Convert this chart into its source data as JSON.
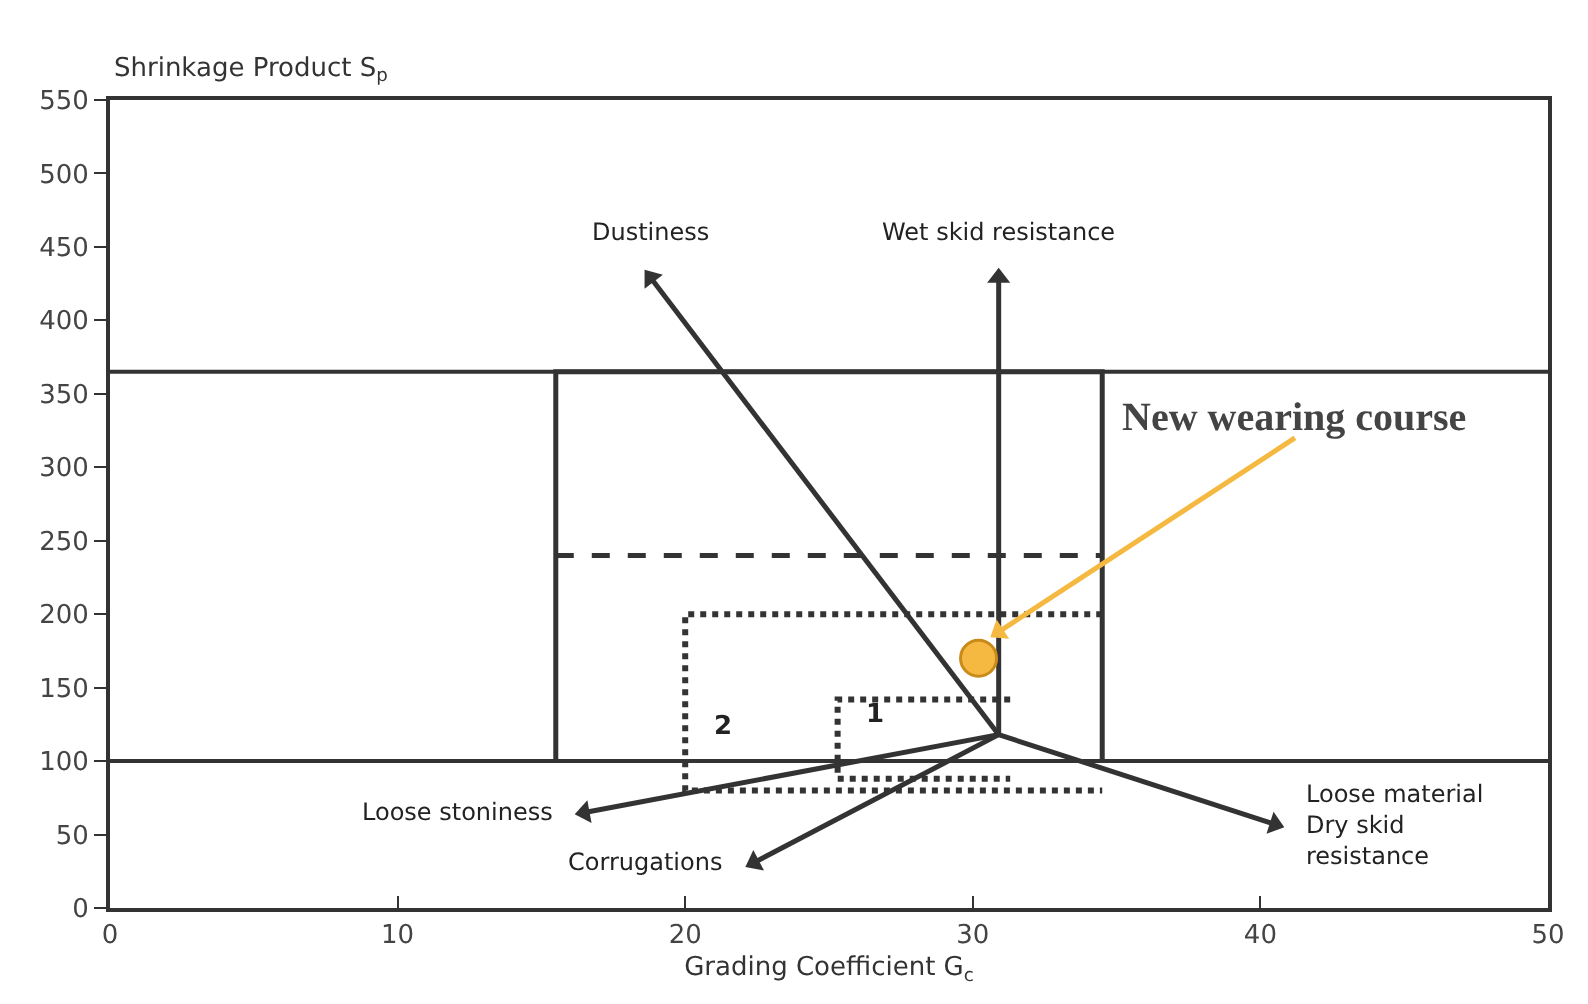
{
  "chart_data": {
    "type": "line",
    "xlabel": "Grading Coefficient G$_{c}$",
    "ylabel": "Shrinkage Product S$_{p}$",
    "xlim": [
      0,
      50
    ],
    "xticks": [
      0,
      10,
      20,
      30,
      40,
      50
    ],
    "ylim": [
      0,
      550
    ],
    "yticks": [
      0,
      50,
      100,
      150,
      200,
      250,
      300,
      350,
      400,
      450,
      500,
      550
    ],
    "ref_lines": [
      {
        "axis": "y",
        "value": 100,
        "color": "#333333"
      },
      {
        "axis": "y",
        "value": 365,
        "color": "#333333"
      }
    ],
    "series": [
      {
        "color": "#333333",
        "line_style": "solid",
        "x": [
          15.5,
          15.5,
          34.5,
          34.5
        ],
        "values": [
          100,
          365,
          365,
          100
        ]
      },
      {
        "color": "#333333",
        "line_style": "dashed",
        "x": [
          15.5,
          34.5
        ],
        "values": [
          240,
          240
        ]
      },
      {
        "name": "2",
        "color": "#333333",
        "line_style": "dotted",
        "x": [
          34.5,
          20,
          20,
          34.5
        ],
        "values": [
          200,
          200,
          80,
          80
        ]
      },
      {
        "name": "1",
        "color": "#333333",
        "line_style": "dotted",
        "x": [
          31.3,
          25.3,
          25.3,
          31.3
        ],
        "values": [
          142,
          142,
          88,
          88
        ]
      },
      {
        "name": "Dustiness",
        "color": "#333333",
        "line_style": "solid",
        "marker": "triangle",
        "x": [
          30.9,
          18.8
        ],
        "values": [
          118,
          429
        ]
      },
      {
        "name": "Wet skid resistance",
        "color": "#333333",
        "line_style": "solid",
        "marker": "triangle",
        "x": [
          30.9,
          30.9
        ],
        "values": [
          118,
          429
        ]
      },
      {
        "name": "Loose stoniness",
        "color": "#333333",
        "line_style": "solid",
        "marker": "triangle",
        "x": [
          30.9,
          16.5
        ],
        "values": [
          118,
          65
        ]
      },
      {
        "name": "Corrugations",
        "color": "#333333",
        "line_style": "solid",
        "marker": "triangle",
        "x": [
          30.9,
          22.4
        ],
        "values": [
          118,
          31
        ]
      },
      {
        "name": "Loose material\nDry skid\nresistance",
        "color": "#333333",
        "line_style": "solid",
        "marker": "triangle",
        "x": [
          30.9,
          40.5
        ],
        "values": [
          118,
          57
        ]
      },
      {
        "color": "#f5b942",
        "line_style": "solid",
        "marker": "triangle",
        "x": [
          41.2,
          30.9
        ],
        "values": [
          320,
          188
        ]
      },
      {
        "type": "scatter",
        "color": "#f5b942",
        "marker": "circle",
        "x": [
          30.2
        ],
        "values": [
          170
        ]
      }
    ],
    "annotations": [
      {
        "text": "New wearing course",
        "x": 41.2,
        "y": 320
      }
    ]
  }
}
